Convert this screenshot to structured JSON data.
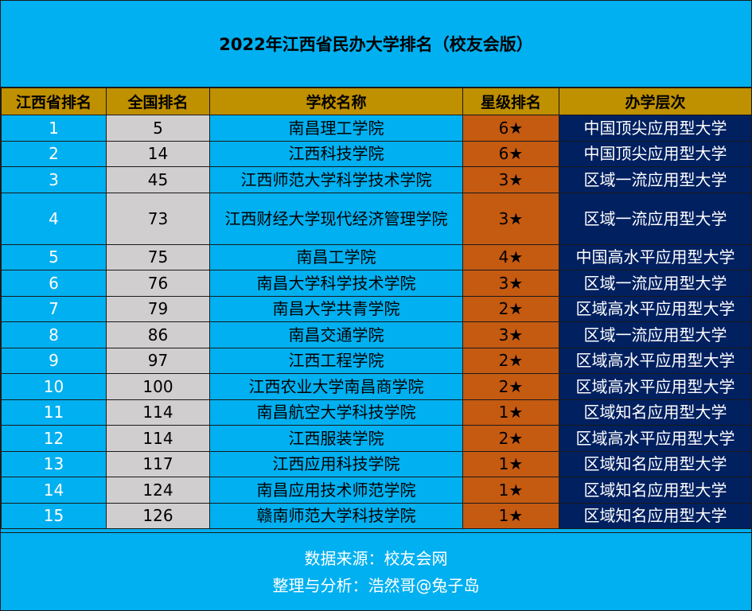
{
  "title": "2022年江西省民办大学排名（校友会版）",
  "headers": {
    "prov_rank": "江西省排名",
    "nat_rank": "全国排名",
    "name": "学校名称",
    "stars": "星级排名",
    "level": "办学层次"
  },
  "rows": [
    {
      "prov": "1",
      "nat": "5",
      "name": "南昌理工学院",
      "stars": "6★",
      "level": "中国顶尖应用型大学"
    },
    {
      "prov": "2",
      "nat": "14",
      "name": "江西科技学院",
      "stars": "6★",
      "level": "中国顶尖应用型大学"
    },
    {
      "prov": "3",
      "nat": "45",
      "name": "江西师范大学科学技术学院",
      "stars": "3★",
      "level": "区域一流应用型大学"
    },
    {
      "prov": "4",
      "nat": "73",
      "name": "江西财经大学现代经济管理学院",
      "stars": "3★",
      "level": "区域一流应用型大学"
    },
    {
      "prov": "5",
      "nat": "75",
      "name": "南昌工学院",
      "stars": "4★",
      "level": "中国高水平应用型大学"
    },
    {
      "prov": "6",
      "nat": "76",
      "name": "南昌大学科学技术学院",
      "stars": "3★",
      "level": "区域一流应用型大学"
    },
    {
      "prov": "7",
      "nat": "79",
      "name": "南昌大学共青学院",
      "stars": "2★",
      "level": "区域高水平应用型大学"
    },
    {
      "prov": "8",
      "nat": "86",
      "name": "南昌交通学院",
      "stars": "3★",
      "level": "区域一流应用型大学"
    },
    {
      "prov": "9",
      "nat": "97",
      "name": "江西工程学院",
      "stars": "2★",
      "level": "区域高水平应用型大学"
    },
    {
      "prov": "10",
      "nat": "100",
      "name": "江西农业大学南昌商学院",
      "stars": "2★",
      "level": "区域高水平应用型大学"
    },
    {
      "prov": "11",
      "nat": "114",
      "name": "南昌航空大学科技学院",
      "stars": "1★",
      "level": "区域知名应用型大学"
    },
    {
      "prov": "12",
      "nat": "114",
      "name": "江西服装学院",
      "stars": "2★",
      "level": "区域高水平应用型大学"
    },
    {
      "prov": "13",
      "nat": "117",
      "name": "江西应用科技学院",
      "stars": "1★",
      "level": "区域知名应用型大学"
    },
    {
      "prov": "14",
      "nat": "124",
      "name": "南昌应用技术师范学院",
      "stars": "1★",
      "level": "区域知名应用型大学"
    },
    {
      "prov": "15",
      "nat": "126",
      "name": "赣南师范大学科技学院",
      "stars": "1★",
      "level": "区域知名应用型大学"
    }
  ],
  "footer": {
    "source": "数据来源：校友会网",
    "author": "整理与分析：浩然哥@兔子岛"
  }
}
